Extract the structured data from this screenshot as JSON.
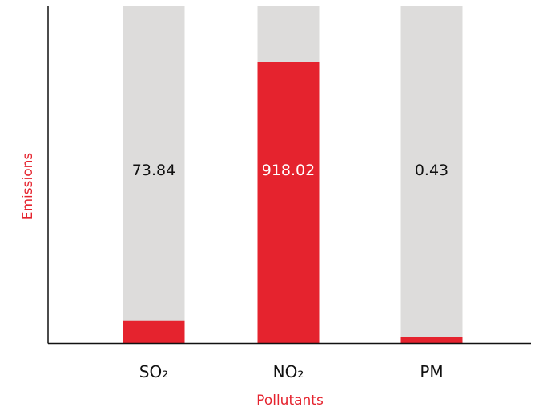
{
  "chart_data": {
    "type": "bar",
    "categories": [
      "SO₂",
      "NO₂",
      "PM"
    ],
    "values": [
      73.84,
      918.02,
      0.43
    ],
    "data_labels": [
      "73.84",
      "918.02",
      "0.43"
    ],
    "xlabel": "Pollutants",
    "ylabel": "Emissions",
    "ylim": [
      0,
      1100
    ],
    "grid": false,
    "legend": "none",
    "colors": {
      "bar": "#e5232e",
      "track": "#dddcdb",
      "axis": "#111111",
      "axis_title": "#e5232e",
      "label_on_track": "#111111",
      "label_on_bar": "#ffffff"
    }
  }
}
